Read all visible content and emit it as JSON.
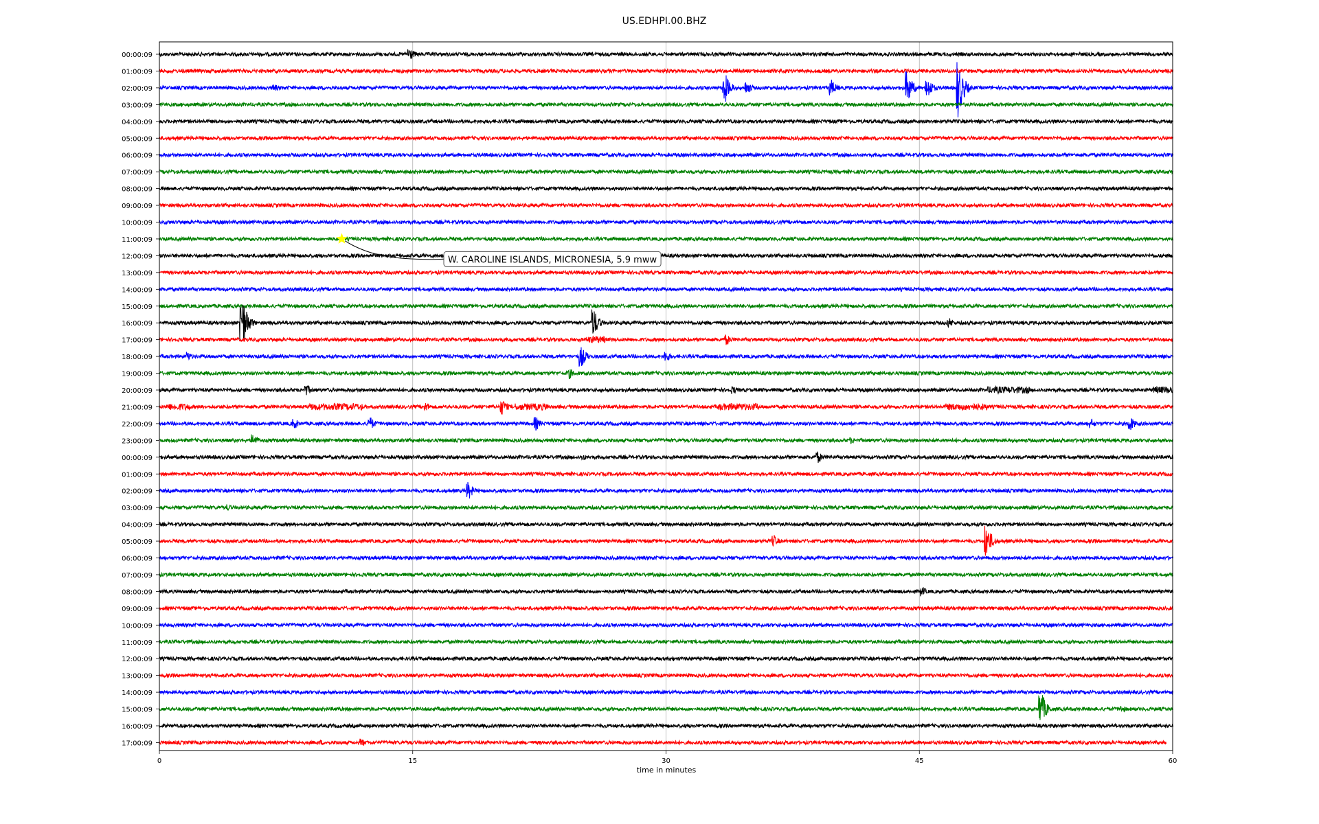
{
  "chart_data": {
    "type": "line",
    "title": "US.EDHPI.00.BHZ",
    "xlabel": "time in minutes",
    "ylabel": "",
    "xlim": [
      0,
      60
    ],
    "xticks": [
      0,
      15,
      30,
      45,
      60
    ],
    "grid": "vertical",
    "row_labels": [
      "00:00:09",
      "01:00:09",
      "02:00:09",
      "03:00:09",
      "04:00:09",
      "05:00:09",
      "06:00:09",
      "07:00:09",
      "08:00:09",
      "09:00:09",
      "10:00:09",
      "11:00:09",
      "12:00:09",
      "13:00:09",
      "14:00:09",
      "15:00:09",
      "16:00:09",
      "17:00:09",
      "18:00:09",
      "19:00:09",
      "20:00:09",
      "21:00:09",
      "22:00:09",
      "23:00:09",
      "00:00:09",
      "01:00:09",
      "02:00:09",
      "03:00:09",
      "04:00:09",
      "05:00:09",
      "06:00:09",
      "07:00:09",
      "08:00:09",
      "09:00:09",
      "10:00:09",
      "11:00:09",
      "12:00:09",
      "13:00:09",
      "14:00:09",
      "15:00:09",
      "16:00:09",
      "17:00:09"
    ],
    "trace_colors": [
      "#000000",
      "#ff0000",
      "#0000ff",
      "#008000"
    ],
    "last_row_end_minute": 59.6,
    "events": [
      {
        "row": 0,
        "minute": 14.8,
        "amplitude": 11
      },
      {
        "row": 2,
        "minute": 6.8,
        "amplitude": 6
      },
      {
        "row": 2,
        "minute": 33.5,
        "amplitude": 22
      },
      {
        "row": 2,
        "minute": 34.8,
        "amplitude": 10
      },
      {
        "row": 2,
        "minute": 39.8,
        "amplitude": 12
      },
      {
        "row": 2,
        "minute": 44.3,
        "amplitude": 24
      },
      {
        "row": 2,
        "minute": 45.5,
        "amplitude": 16
      },
      {
        "row": 2,
        "minute": 47.3,
        "amplitude": 44
      },
      {
        "row": 16,
        "minute": 4.9,
        "amplitude": 40
      },
      {
        "row": 16,
        "minute": 25.7,
        "amplitude": 22
      },
      {
        "row": 16,
        "minute": 46.8,
        "amplitude": 7
      },
      {
        "row": 17,
        "minute": 25.9,
        "amplitude": 6
      },
      {
        "row": 17,
        "minute": 33.6,
        "amplitude": 8
      },
      {
        "row": 18,
        "minute": 25.0,
        "amplitude": 15
      },
      {
        "row": 18,
        "minute": 30.0,
        "amplitude": 9
      },
      {
        "row": 18,
        "minute": 1.7,
        "amplitude": 7
      },
      {
        "row": 19,
        "minute": 24.3,
        "amplitude": 8
      },
      {
        "row": 20,
        "minute": 8.7,
        "amplitude": 9
      },
      {
        "row": 20,
        "minute": 34.0,
        "amplitude": 6
      },
      {
        "row": 21,
        "minute": 20.3,
        "amplitude": 12
      },
      {
        "row": 21,
        "minute": 15.8,
        "amplitude": 7
      },
      {
        "row": 22,
        "minute": 8.0,
        "amplitude": 8
      },
      {
        "row": 22,
        "minute": 12.5,
        "amplitude": 10
      },
      {
        "row": 22,
        "minute": 22.3,
        "amplitude": 10
      },
      {
        "row": 22,
        "minute": 57.5,
        "amplitude": 11
      },
      {
        "row": 22,
        "minute": 55.2,
        "amplitude": 7
      },
      {
        "row": 23,
        "minute": 5.6,
        "amplitude": 9
      },
      {
        "row": 23,
        "minute": 41.0,
        "amplitude": 5
      },
      {
        "row": 24,
        "minute": 39.0,
        "amplitude": 9
      },
      {
        "row": 24,
        "minute": 25.1,
        "amplitude": 5
      },
      {
        "row": 26,
        "minute": 18.3,
        "amplitude": 13
      },
      {
        "row": 27,
        "minute": 4.1,
        "amplitude": 5
      },
      {
        "row": 29,
        "minute": 36.4,
        "amplitude": 9
      },
      {
        "row": 29,
        "minute": 49.0,
        "amplitude": 24
      },
      {
        "row": 32,
        "minute": 45.2,
        "amplitude": 7
      },
      {
        "row": 36,
        "minute": 30.4,
        "amplitude": 4
      },
      {
        "row": 39,
        "minute": 52.2,
        "amplitude": 26
      },
      {
        "row": 39,
        "minute": 57.0,
        "amplitude": 6
      },
      {
        "row": 41,
        "minute": 12.0,
        "amplitude": 6
      },
      {
        "row": 41,
        "minute": 9.6,
        "amplitude": 4
      }
    ],
    "noisy_segments": [
      {
        "row": 21,
        "start": 0.4,
        "end": 1.8
      },
      {
        "row": 21,
        "start": 8.8,
        "end": 12.0
      },
      {
        "row": 21,
        "start": 21.0,
        "end": 23.0
      },
      {
        "row": 21,
        "start": 33.0,
        "end": 35.5
      },
      {
        "row": 21,
        "start": 46.5,
        "end": 49.0
      },
      {
        "row": 20,
        "start": 49.0,
        "end": 51.5
      },
      {
        "row": 20,
        "start": 58.8,
        "end": 60.0
      },
      {
        "row": 17,
        "start": 25.3,
        "end": 26.4
      }
    ],
    "annotation": {
      "text": "W. CAROLINE ISLANDS, MICRONESIA, 5.9 mww",
      "row": 11,
      "minute": 10.8,
      "marker": "star",
      "marker_color": "#ffff00"
    }
  }
}
